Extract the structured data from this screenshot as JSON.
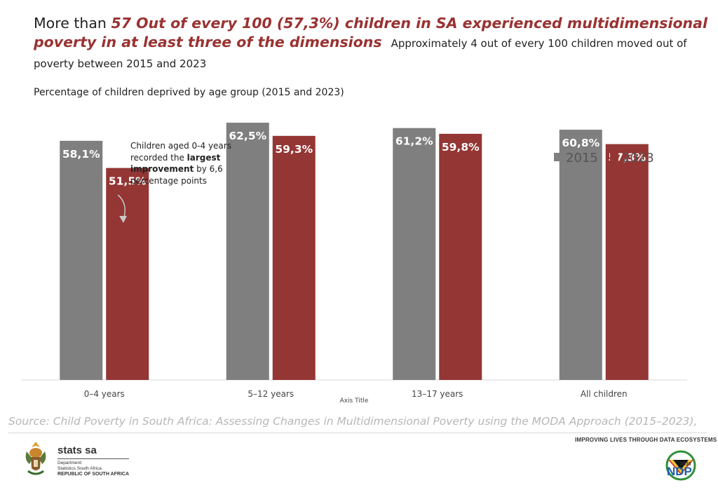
{
  "headline": {
    "prefix": "More than ",
    "highlight": "57 Out of every 100 (57,3%) children in SA experienced multidimensional poverty in at least three of the dimensions",
    "sub": "Approximately 4 out of every 100 children moved out of poverty between 2015 and 2023"
  },
  "subtitle": "Percentage of children deprived by age group (2015 and 2023)",
  "annotation": {
    "pre": "Children aged 0-4 years recorded the ",
    "bold": "largest improvement",
    "post": " by 6,6 percentage points"
  },
  "chart_data": {
    "type": "bar",
    "categories": [
      "0–4 years",
      "5–12 years",
      "13–17 years",
      "All children"
    ],
    "series": [
      {
        "name": "2015",
        "values": [
          58.1,
          62.5,
          61.2,
          60.8
        ],
        "labels": [
          "58,1%",
          "62,5%",
          "61,2%",
          "60,8%"
        ],
        "color": "#7f7f7f"
      },
      {
        "name": "2023",
        "values": [
          51.5,
          59.3,
          59.8,
          57.3
        ],
        "labels": [
          "51,5%",
          "59,3%",
          "59,8%",
          "57,3%"
        ],
        "color": "#943634"
      }
    ],
    "xlabel": "Axis Title",
    "ylim": [
      0,
      70
    ],
    "legend_position": "top-right",
    "grid": false
  },
  "source": "Source: Child Poverty in South Africa: Assessing Changes in Multidimensional Poverty using the MODA Approach (2015–2023),",
  "footer": {
    "tagline": "IMPROVING LIVES THROUGH DATA ECOSYSTEMS",
    "brand": "stats sa",
    "dept_line1": "Department:",
    "dept_line2": "Statistics South Africa",
    "dept_line3": "REPUBLIC OF SOUTH AFRICA",
    "ndp": "NDP",
    "ndp_year": "2030"
  }
}
